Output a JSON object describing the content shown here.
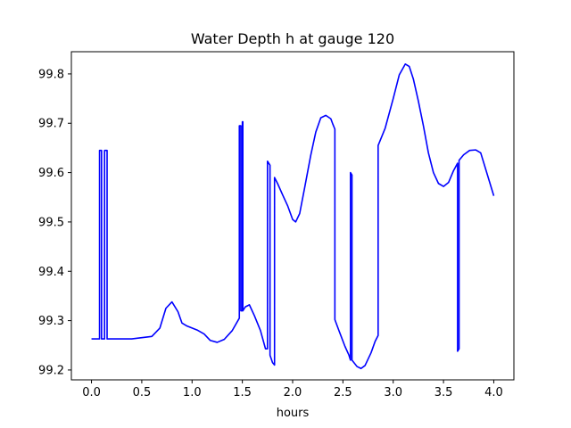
{
  "chart_data": {
    "type": "line",
    "title": "Water Depth h at gauge 120",
    "xlabel": "hours",
    "ylabel": "",
    "xlim": [
      -0.2,
      4.2
    ],
    "ylim": [
      99.18,
      99.845
    ],
    "x_ticks": [
      0.0,
      0.5,
      1.0,
      1.5,
      2.0,
      2.5,
      3.0,
      3.5,
      4.0
    ],
    "x_tick_labels": [
      "0.0",
      "0.5",
      "1.0",
      "1.5",
      "2.0",
      "2.5",
      "3.0",
      "3.5",
      "4.0"
    ],
    "y_ticks": [
      99.2,
      99.3,
      99.4,
      99.5,
      99.6,
      99.7,
      99.8
    ],
    "y_tick_labels": [
      "99.2",
      "99.3",
      "99.4",
      "99.5",
      "99.6",
      "99.7",
      "99.8"
    ],
    "grid": false,
    "series": [
      {
        "name": "",
        "color": "#0000ff",
        "points": [
          [
            0.0,
            99.263
          ],
          [
            0.08,
            99.263
          ],
          [
            0.08,
            99.645
          ],
          [
            0.1,
            99.645
          ],
          [
            0.1,
            99.263
          ],
          [
            0.13,
            99.263
          ],
          [
            0.13,
            99.645
          ],
          [
            0.155,
            99.645
          ],
          [
            0.155,
            99.263
          ],
          [
            0.4,
            99.263
          ],
          [
            0.6,
            99.268
          ],
          [
            0.68,
            99.285
          ],
          [
            0.74,
            99.325
          ],
          [
            0.8,
            99.338
          ],
          [
            0.86,
            99.318
          ],
          [
            0.9,
            99.295
          ],
          [
            0.95,
            99.289
          ],
          [
            1.05,
            99.281
          ],
          [
            1.12,
            99.273
          ],
          [
            1.18,
            99.26
          ],
          [
            1.25,
            99.256
          ],
          [
            1.32,
            99.262
          ],
          [
            1.4,
            99.28
          ],
          [
            1.47,
            99.305
          ],
          [
            1.47,
            99.695
          ],
          [
            1.485,
            99.695
          ],
          [
            1.485,
            99.32
          ],
          [
            1.5,
            99.32
          ],
          [
            1.5,
            99.703
          ],
          [
            1.505,
            99.703
          ],
          [
            1.505,
            99.32
          ],
          [
            1.53,
            99.328
          ],
          [
            1.57,
            99.332
          ],
          [
            1.62,
            99.31
          ],
          [
            1.68,
            99.28
          ],
          [
            1.73,
            99.243
          ],
          [
            1.75,
            99.243
          ],
          [
            1.75,
            99.623
          ],
          [
            1.775,
            99.615
          ],
          [
            1.775,
            99.23
          ],
          [
            1.8,
            99.215
          ],
          [
            1.82,
            99.21
          ],
          [
            1.82,
            99.59
          ],
          [
            1.85,
            99.578
          ],
          [
            1.9,
            99.555
          ],
          [
            1.95,
            99.533
          ],
          [
            2.0,
            99.505
          ],
          [
            2.03,
            99.5
          ],
          [
            2.07,
            99.517
          ],
          [
            2.12,
            99.57
          ],
          [
            2.18,
            99.635
          ],
          [
            2.23,
            99.682
          ],
          [
            2.28,
            99.711
          ],
          [
            2.33,
            99.716
          ],
          [
            2.38,
            99.709
          ],
          [
            2.4,
            99.698
          ],
          [
            2.42,
            99.688
          ],
          [
            2.42,
            99.302
          ],
          [
            2.46,
            99.28
          ],
          [
            2.52,
            99.248
          ],
          [
            2.56,
            99.23
          ],
          [
            2.575,
            99.22
          ],
          [
            2.575,
            99.6
          ],
          [
            2.59,
            99.595
          ],
          [
            2.59,
            99.22
          ],
          [
            2.64,
            99.207
          ],
          [
            2.68,
            99.203
          ],
          [
            2.72,
            99.209
          ],
          [
            2.78,
            99.235
          ],
          [
            2.82,
            99.258
          ],
          [
            2.85,
            99.27
          ],
          [
            2.85,
            99.655
          ],
          [
            2.92,
            99.69
          ],
          [
            3.0,
            99.75
          ],
          [
            3.06,
            99.798
          ],
          [
            3.12,
            99.82
          ],
          [
            3.16,
            99.815
          ],
          [
            3.2,
            99.79
          ],
          [
            3.25,
            99.745
          ],
          [
            3.3,
            99.695
          ],
          [
            3.35,
            99.64
          ],
          [
            3.4,
            99.6
          ],
          [
            3.45,
            99.578
          ],
          [
            3.5,
            99.572
          ],
          [
            3.55,
            99.58
          ],
          [
            3.6,
            99.604
          ],
          [
            3.64,
            99.619
          ],
          [
            3.64,
            99.238
          ],
          [
            3.655,
            99.243
          ],
          [
            3.655,
            99.625
          ],
          [
            3.7,
            99.636
          ],
          [
            3.76,
            99.645
          ],
          [
            3.82,
            99.646
          ],
          [
            3.87,
            99.64
          ],
          [
            3.93,
            99.6
          ],
          [
            4.0,
            99.553
          ]
        ]
      }
    ]
  }
}
